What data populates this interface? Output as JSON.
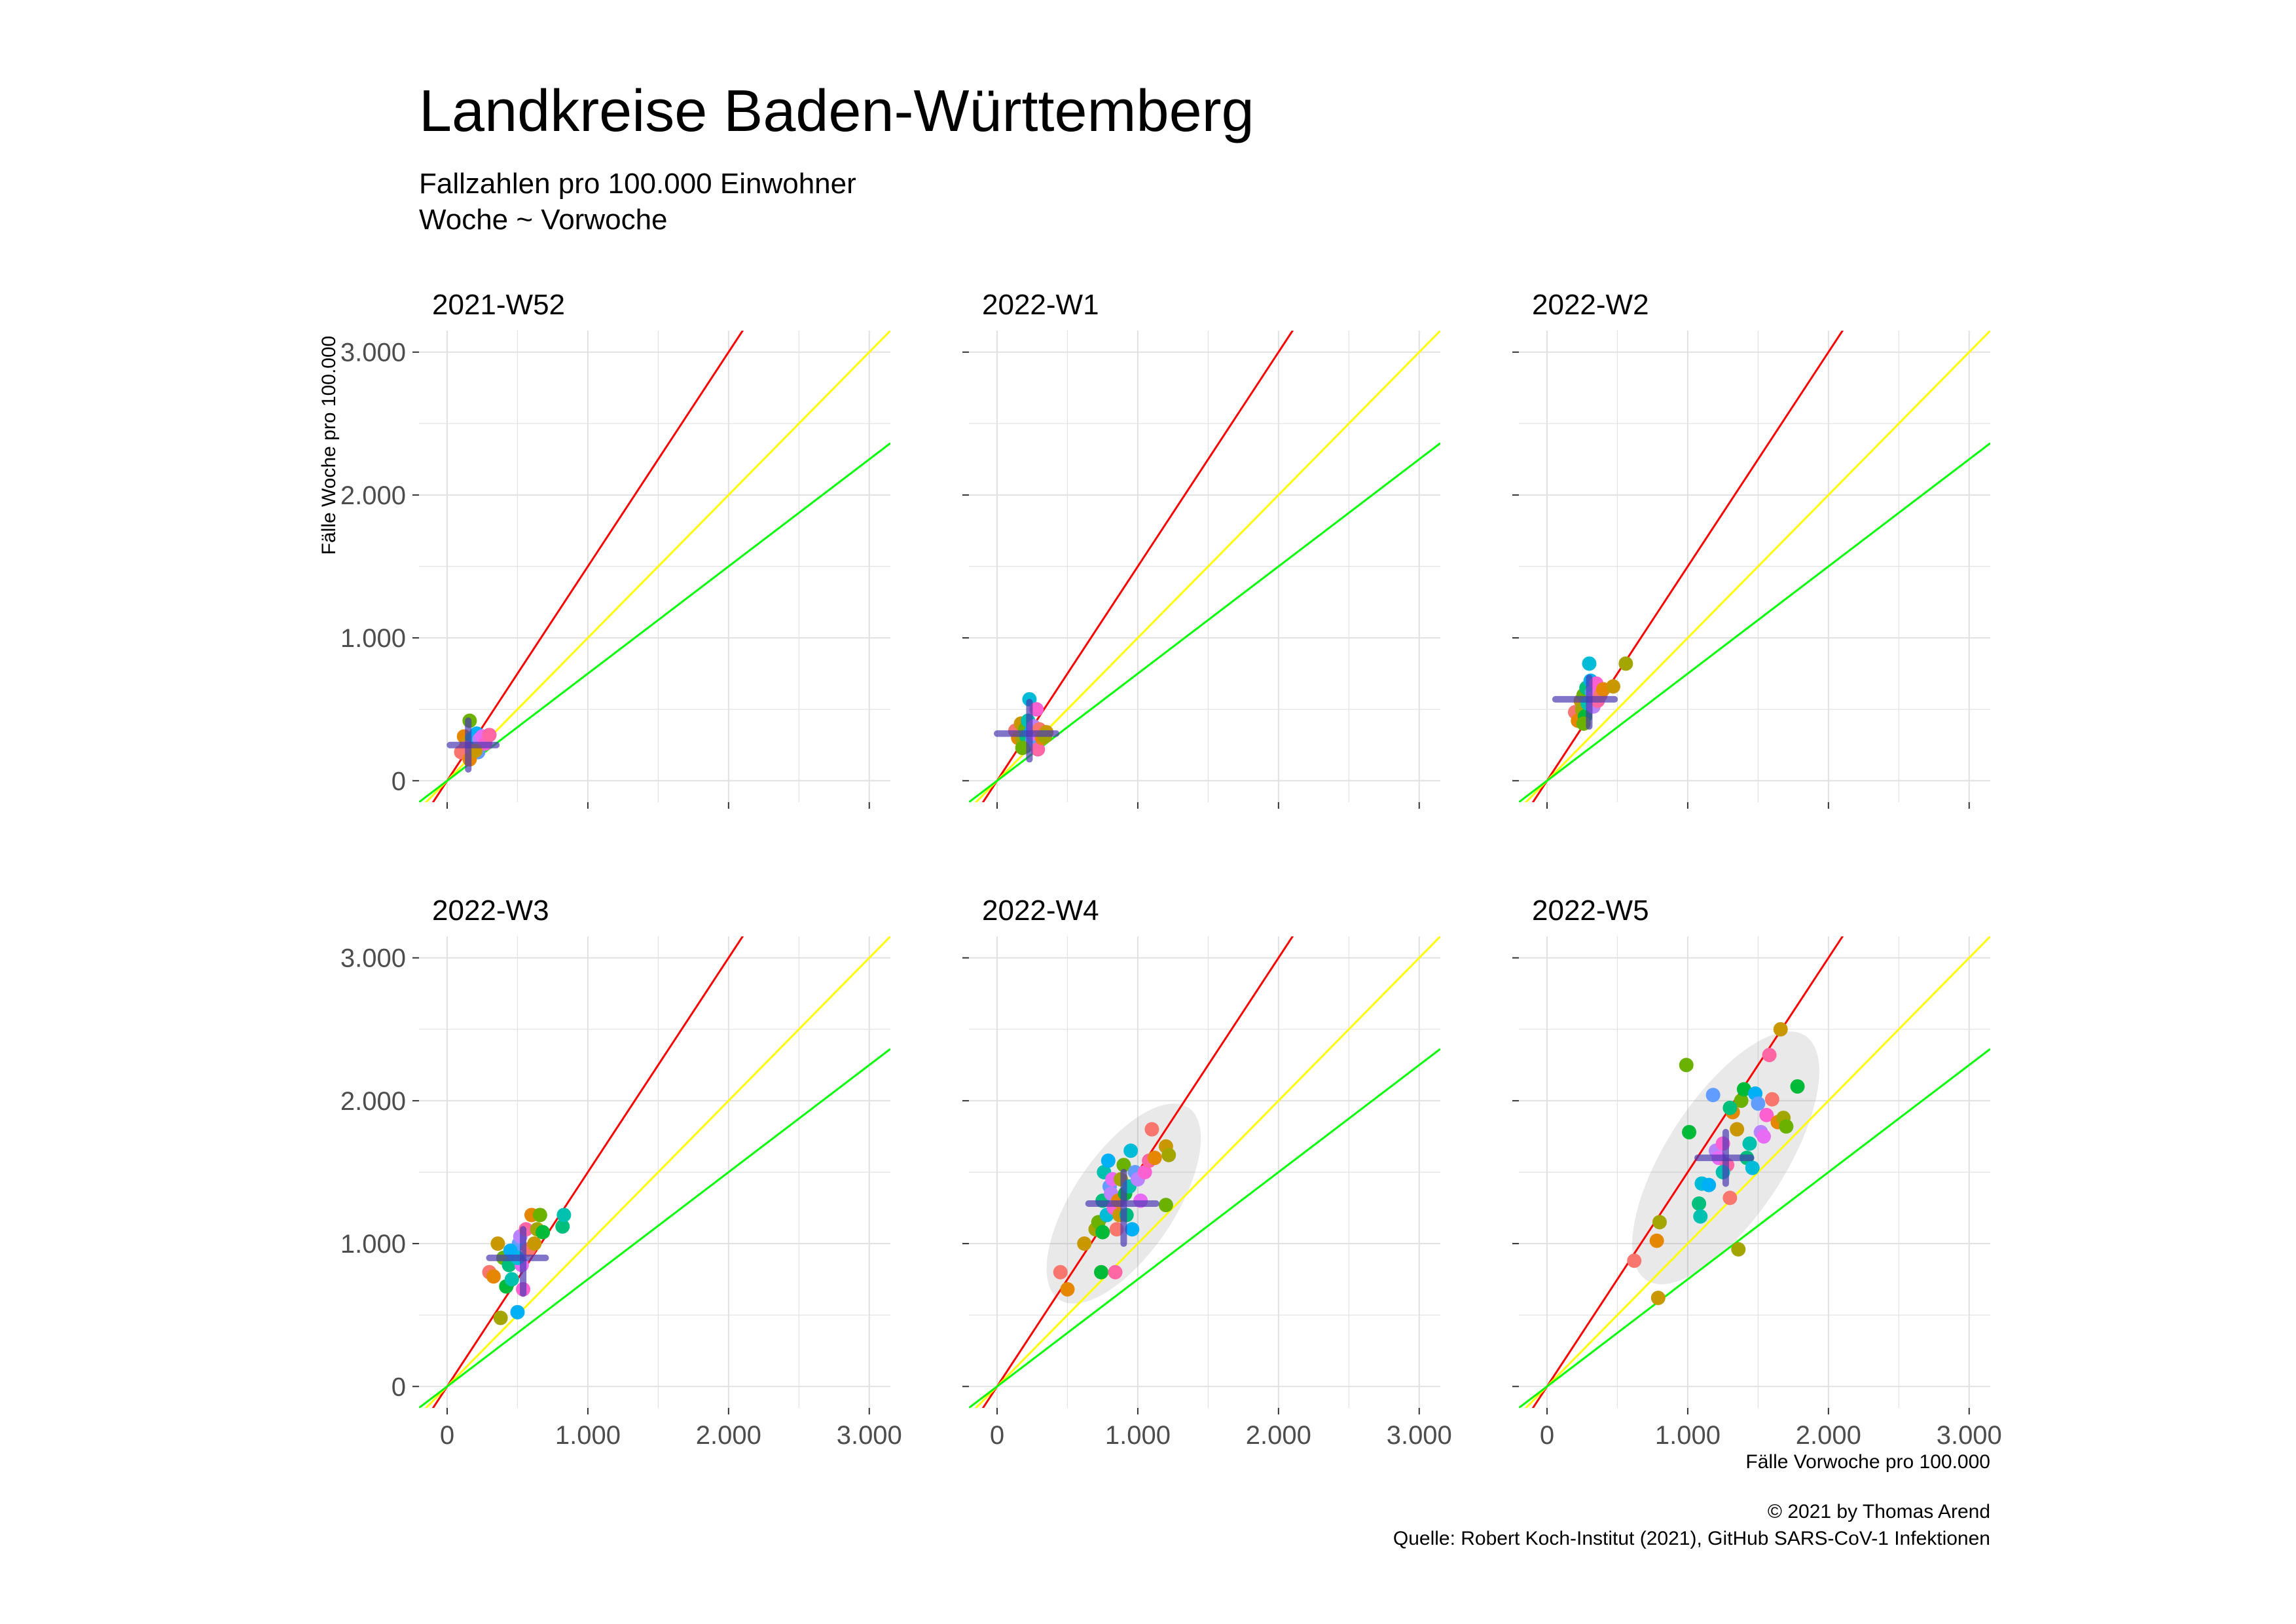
{
  "title": "Landkreise Baden-Württemberg",
  "subtitle": [
    "Fallzahlen pro 100.000 Einwohner",
    "Woche ~ Vorwoche"
  ],
  "caption": [
    "© 2021 by Thomas Arend",
    "Quelle: Robert Koch-Institut (2021), GitHub SARS-CoV-1 Infektionen"
  ],
  "chart_data": {
    "type": "scatter",
    "xlabel": "Fälle Vorwoche pro 100.000",
    "ylabel": "Fälle Woche pro 100.000",
    "xlim": [
      -200,
      3150
    ],
    "ylim": [
      -150,
      3150
    ],
    "ticks": [
      0,
      1000,
      2000,
      3000
    ],
    "tick_labels": [
      "0",
      "1.000",
      "2.000",
      "3.000"
    ],
    "grid": true,
    "reference_lines": [
      {
        "color": "#ff0000",
        "slope": 1.5
      },
      {
        "color": "#ffff00",
        "slope": 1.0
      },
      {
        "color": "#00ff00",
        "slope": 0.75
      }
    ],
    "point_colors": [
      "#f8766d",
      "#e58700",
      "#c99800",
      "#a3a500",
      "#6bb100",
      "#00ba38",
      "#00bf7d",
      "#00c0af",
      "#00bcd8",
      "#00b0f6",
      "#619cff",
      "#b983ff",
      "#e76bf3",
      "#fd61d1",
      "#ff67a4"
    ],
    "panels": [
      {
        "label": "2021-W52",
        "mean": [
          150,
          250
        ],
        "cross_x": [
          20,
          350
        ],
        "cross_y": [
          80,
          420
        ],
        "ellipse": null,
        "points": [
          [
            100,
            200
          ],
          [
            120,
            310
          ],
          [
            140,
            260
          ],
          [
            150,
            220
          ],
          [
            160,
            420
          ],
          [
            170,
            180
          ],
          [
            180,
            300
          ],
          [
            190,
            240
          ],
          [
            200,
            270
          ],
          [
            210,
            330
          ],
          [
            220,
            200
          ],
          [
            230,
            290
          ],
          [
            250,
            310
          ],
          [
            270,
            260
          ],
          [
            300,
            320
          ],
          [
            130,
            230
          ],
          [
            160,
            150
          ],
          [
            200,
            210
          ]
        ]
      },
      {
        "label": "2022-W1",
        "mean": [
          230,
          330
        ],
        "cross_x": [
          0,
          420
        ],
        "cross_y": [
          150,
          550
        ],
        "ellipse": null,
        "points": [
          [
            130,
            350
          ],
          [
            150,
            300
          ],
          [
            170,
            400
          ],
          [
            180,
            290
          ],
          [
            200,
            360
          ],
          [
            200,
            240
          ],
          [
            210,
            310
          ],
          [
            220,
            420
          ],
          [
            230,
            570
          ],
          [
            240,
            340
          ],
          [
            250,
            280
          ],
          [
            260,
            380
          ],
          [
            270,
            330
          ],
          [
            280,
            500
          ],
          [
            290,
            220
          ],
          [
            300,
            360
          ],
          [
            320,
            300
          ],
          [
            350,
            340
          ],
          [
            340,
            310
          ],
          [
            180,
            230
          ]
        ]
      },
      {
        "label": "2022-W2",
        "mean": [
          300,
          570
        ],
        "cross_x": [
          60,
          480
        ],
        "cross_y": [
          380,
          720
        ],
        "ellipse": null,
        "points": [
          [
            200,
            480
          ],
          [
            220,
            420
          ],
          [
            240,
            560
          ],
          [
            250,
            500
          ],
          [
            260,
            600
          ],
          [
            270,
            450
          ],
          [
            280,
            650
          ],
          [
            290,
            540
          ],
          [
            300,
            820
          ],
          [
            310,
            700
          ],
          [
            320,
            620
          ],
          [
            330,
            520
          ],
          [
            340,
            590
          ],
          [
            350,
            680
          ],
          [
            360,
            560
          ],
          [
            380,
            600
          ],
          [
            400,
            640
          ],
          [
            470,
            660
          ],
          [
            560,
            820
          ],
          [
            260,
            400
          ]
        ]
      },
      {
        "label": "2022-W3",
        "mean": [
          540,
          900
        ],
        "cross_x": [
          300,
          700
        ],
        "cross_y": [
          650,
          1100
        ],
        "ellipse": null,
        "points": [
          [
            300,
            800
          ],
          [
            330,
            770
          ],
          [
            360,
            1000
          ],
          [
            380,
            480
          ],
          [
            400,
            900
          ],
          [
            420,
            700
          ],
          [
            440,
            850
          ],
          [
            460,
            750
          ],
          [
            480,
            920
          ],
          [
            500,
            520
          ],
          [
            510,
            1000
          ],
          [
            520,
            1050
          ],
          [
            530,
            850
          ],
          [
            540,
            680
          ],
          [
            560,
            1100
          ],
          [
            580,
            960
          ],
          [
            600,
            1200
          ],
          [
            620,
            1000
          ],
          [
            640,
            1100
          ],
          [
            660,
            1200
          ],
          [
            680,
            1080
          ],
          [
            820,
            1120
          ],
          [
            830,
            1200
          ],
          [
            500,
            900
          ],
          [
            450,
            950
          ]
        ]
      },
      {
        "label": "2022-W4",
        "mean": [
          900,
          1280
        ],
        "cross_x": [
          650,
          1130
        ],
        "cross_y": [
          1000,
          1500
        ],
        "ellipse": {
          "rx": 360,
          "ry": 810,
          "angle_deg": 56
        },
        "points": [
          [
            450,
            800
          ],
          [
            500,
            680
          ],
          [
            620,
            1000
          ],
          [
            700,
            1100
          ],
          [
            720,
            1150
          ],
          [
            740,
            800
          ],
          [
            750,
            1300
          ],
          [
            760,
            1500
          ],
          [
            780,
            1200
          ],
          [
            790,
            1580
          ],
          [
            800,
            1400
          ],
          [
            810,
            1350
          ],
          [
            820,
            1450
          ],
          [
            830,
            1250
          ],
          [
            840,
            800
          ],
          [
            850,
            1100
          ],
          [
            860,
            1300
          ],
          [
            870,
            1200
          ],
          [
            880,
            1450
          ],
          [
            900,
            1550
          ],
          [
            910,
            1350
          ],
          [
            920,
            1200
          ],
          [
            940,
            1400
          ],
          [
            950,
            1650
          ],
          [
            960,
            1100
          ],
          [
            980,
            1500
          ],
          [
            1000,
            1450
          ],
          [
            1020,
            1300
          ],
          [
            1050,
            1500
          ],
          [
            1080,
            1580
          ],
          [
            1100,
            1800
          ],
          [
            1120,
            1600
          ],
          [
            1200,
            1680
          ],
          [
            1220,
            1620
          ],
          [
            1200,
            1270
          ],
          [
            750,
            1080
          ]
        ]
      },
      {
        "label": "2022-W5",
        "mean": [
          1270,
          1600
        ],
        "cross_x": [
          1070,
          1450
        ],
        "cross_y": [
          1420,
          1780
        ],
        "ellipse": {
          "rx": 420,
          "ry": 1020,
          "angle_deg": 57
        },
        "points": [
          [
            620,
            880
          ],
          [
            780,
            1020
          ],
          [
            790,
            620
          ],
          [
            800,
            1150
          ],
          [
            990,
            2250
          ],
          [
            1010,
            1780
          ],
          [
            1080,
            1280
          ],
          [
            1090,
            1190
          ],
          [
            1100,
            1420
          ],
          [
            1150,
            1410
          ],
          [
            1180,
            2040
          ],
          [
            1200,
            1650
          ],
          [
            1220,
            1600
          ],
          [
            1250,
            1700
          ],
          [
            1280,
            1550
          ],
          [
            1300,
            1320
          ],
          [
            1320,
            1920
          ],
          [
            1350,
            1800
          ],
          [
            1360,
            960
          ],
          [
            1380,
            2000
          ],
          [
            1400,
            2080
          ],
          [
            1420,
            1600
          ],
          [
            1440,
            1700
          ],
          [
            1460,
            1530
          ],
          [
            1480,
            2050
          ],
          [
            1500,
            1980
          ],
          [
            1520,
            1780
          ],
          [
            1540,
            1750
          ],
          [
            1560,
            1900
          ],
          [
            1580,
            2320
          ],
          [
            1600,
            2010
          ],
          [
            1640,
            1850
          ],
          [
            1660,
            2500
          ],
          [
            1680,
            1880
          ],
          [
            1700,
            1820
          ],
          [
            1780,
            2100
          ],
          [
            1300,
            1950
          ],
          [
            1250,
            1500
          ]
        ]
      }
    ]
  }
}
